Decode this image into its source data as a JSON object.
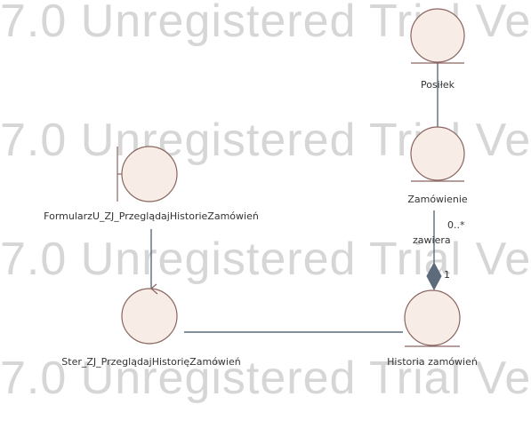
{
  "watermark": {
    "text": "7.0 Unregistered Trial Ve"
  },
  "nodes": {
    "posilek": {
      "label": "Posiłek"
    },
    "zamowienie": {
      "label": "Zamówienie"
    },
    "formularz": {
      "label": "FormularzU_ZJ_PrzeglądajHistorieZamówień"
    },
    "sterownik": {
      "label": "Ster_ZJ_PrzeglądajHistorięZamówień"
    },
    "historia": {
      "label": "Historia zamówień"
    }
  },
  "associations": {
    "zawiera": {
      "name": "zawiera",
      "source_multiplicity": "0..*",
      "target_multiplicity": "1"
    }
  },
  "colors": {
    "node_fill": "#f8ece6",
    "node_stroke": "#8a6560",
    "line": "#5c6a7c",
    "diamond": "#5c6a7c",
    "watermark": "#d6d6d6"
  }
}
